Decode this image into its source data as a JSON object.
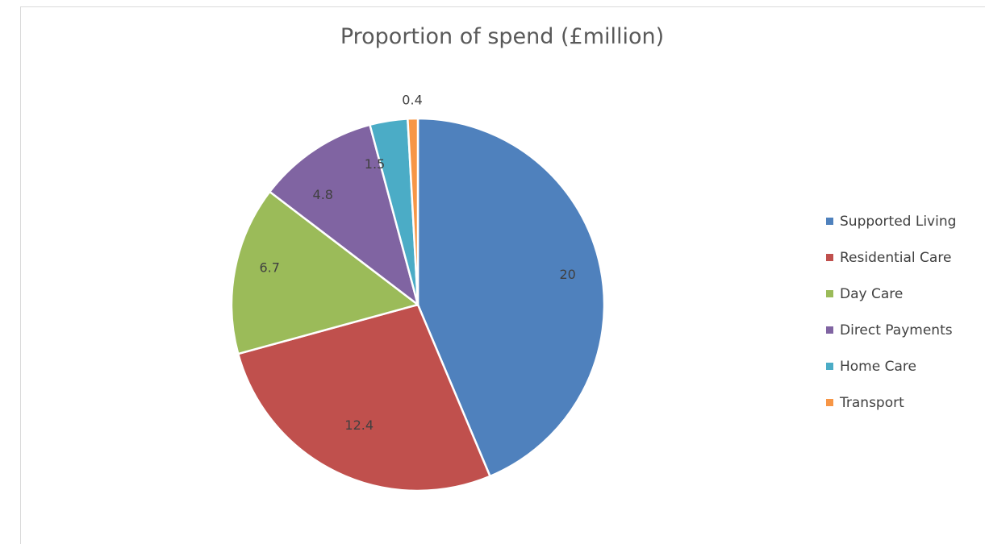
{
  "chart_data": {
    "type": "pie",
    "title": "Proportion of spend (£million)",
    "categories": [
      "Supported Living",
      "Residential Care",
      "Day Care",
      "Direct Payments",
      "Home Care",
      "Transport"
    ],
    "values": [
      20,
      12.4,
      6.7,
      4.8,
      1.5,
      0.4
    ],
    "value_labels": [
      "20",
      "12.4",
      "6.7",
      "4.8",
      "1.5",
      "0.4"
    ],
    "colors": [
      "#4f81bd",
      "#c0504d",
      "#9bbb59",
      "#8064a2",
      "#4bacc6",
      "#f79646"
    ],
    "legend": "right"
  }
}
